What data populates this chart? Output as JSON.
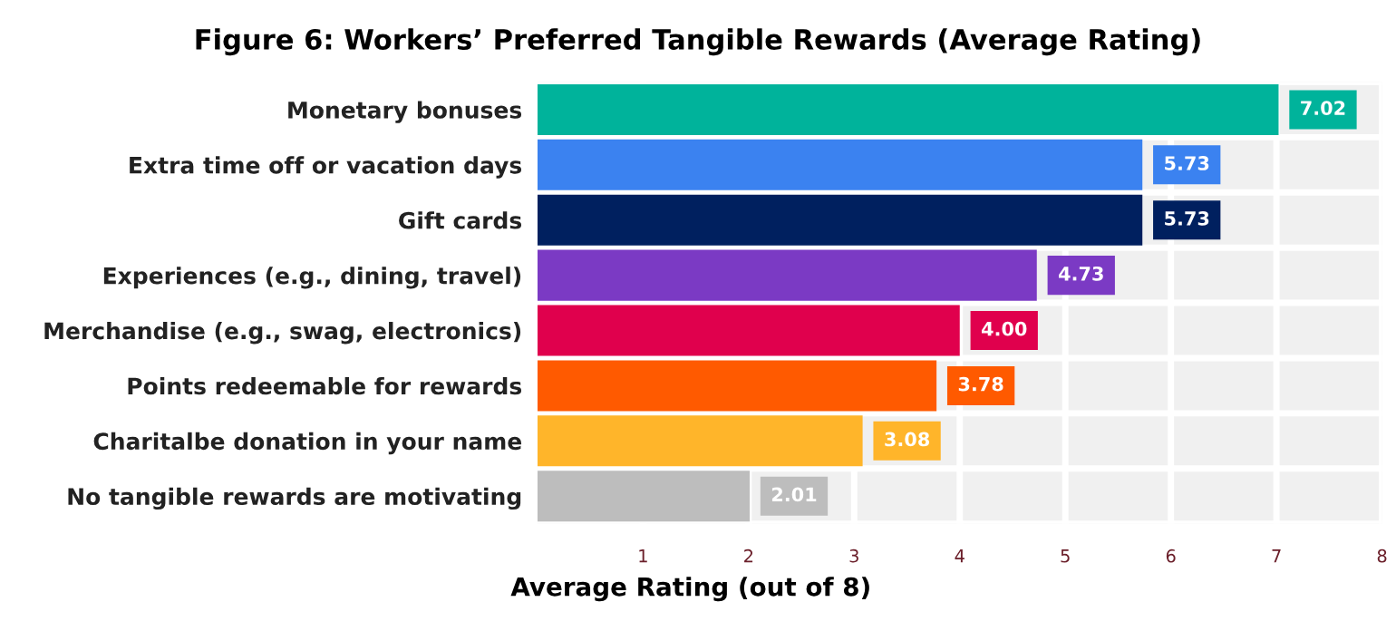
{
  "chart_data": {
    "type": "bar",
    "orientation": "horizontal",
    "title": "Figure 6: Workers’ Preferred Tangible Rewards (Average Rating)",
    "xlabel": "Average Rating (out of 8)",
    "categories": [
      "Monetary bonuses",
      "Extra time off or vacation days",
      "Gift cards",
      "Experiences (e.g., dining, travel)",
      "Merchandise (e.g., swag, electronics)",
      "Points redeemable for rewards",
      "Charitalbe donation in your name",
      "No tangible rewards are motivating"
    ],
    "values": [
      7.02,
      5.73,
      5.73,
      4.73,
      4.0,
      3.78,
      3.08,
      2.01
    ],
    "value_labels": [
      "7.02",
      "5.73",
      "5.73",
      "4.73",
      "4.00",
      "3.78",
      "3.08",
      "2.01"
    ],
    "colors": [
      "#00b39b",
      "#3b82f0",
      "#00205f",
      "#7b3ac4",
      "#e0004d",
      "#ff5a00",
      "#ffb52a",
      "#bdbdbd"
    ],
    "xlim": [
      0,
      8
    ],
    "xticks": [
      1,
      2,
      3,
      4,
      5,
      6,
      7,
      8
    ],
    "grid": "x"
  }
}
